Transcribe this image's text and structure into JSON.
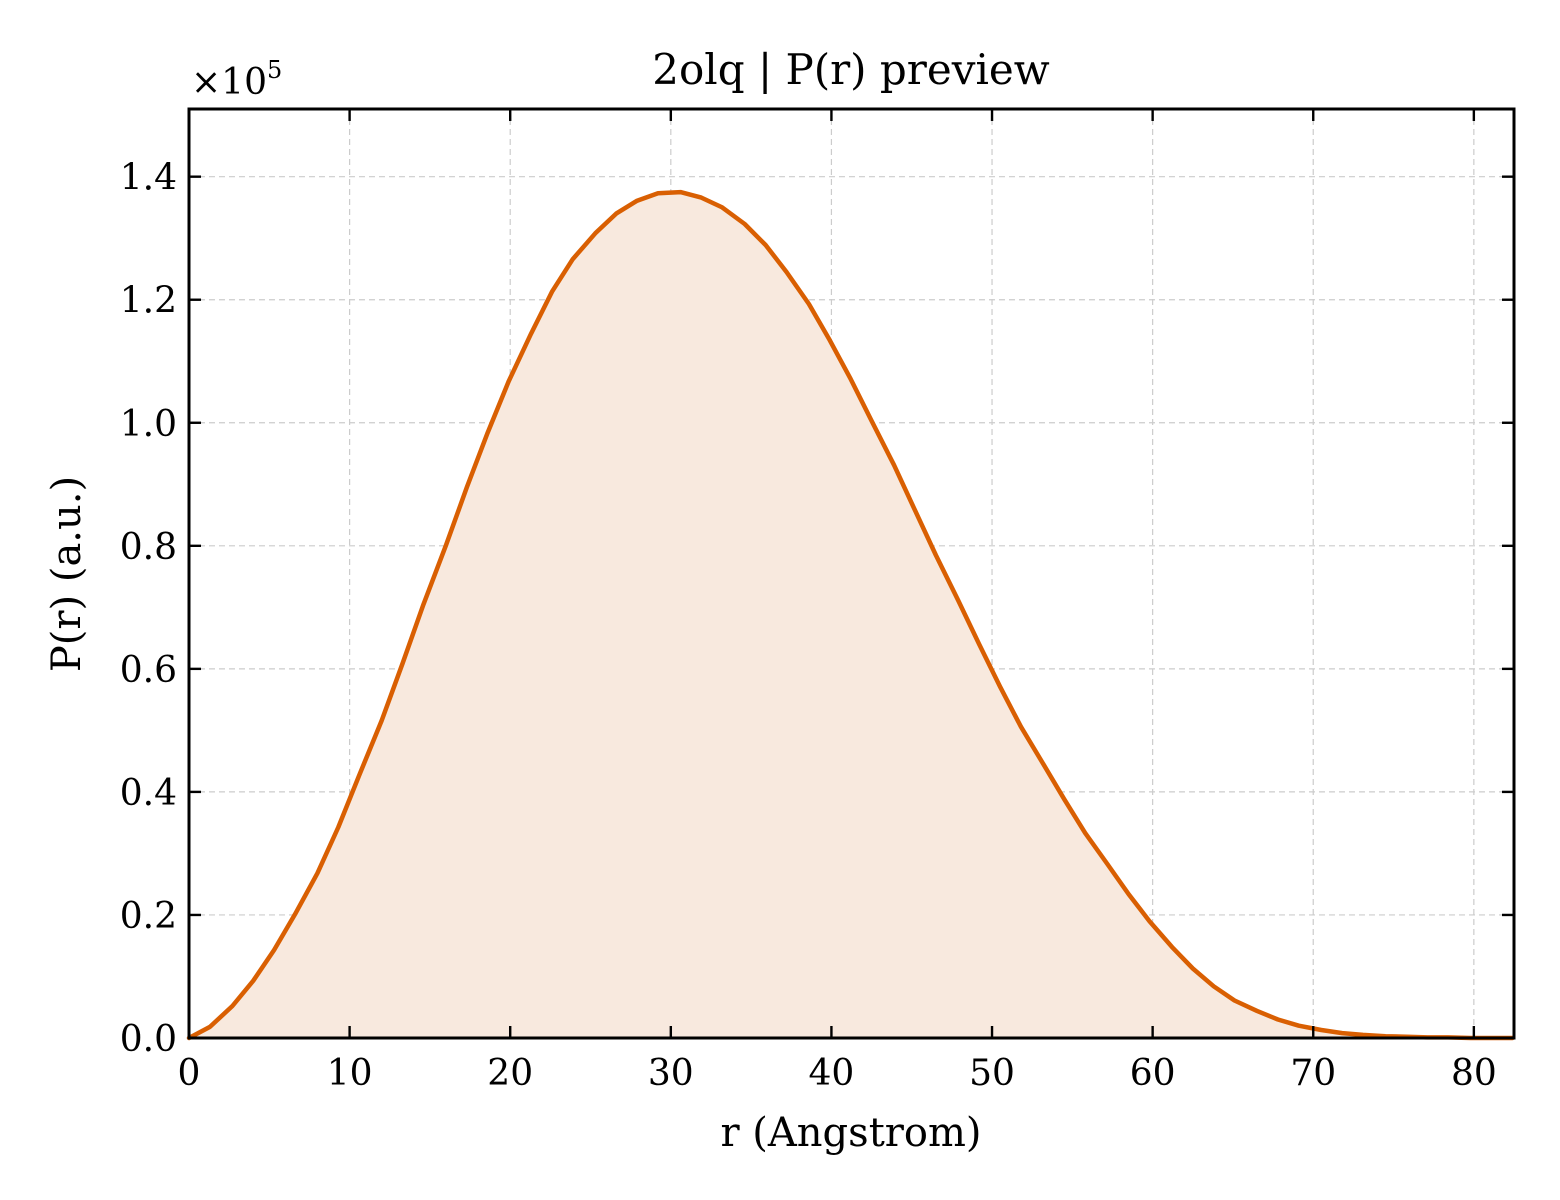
{
  "chart_data": {
    "type": "area",
    "title": "2olq | P(r) preview",
    "xlabel": "r (Angstrom)",
    "ylabel": "P(r) (a.u.)",
    "y_multiplier": "×10",
    "y_multiplier_exponent": "5",
    "xlim": [
      0,
      82.5
    ],
    "ylim": [
      0,
      1.51
    ],
    "xticks": [
      0,
      10,
      20,
      30,
      40,
      50,
      60,
      70,
      80
    ],
    "xtick_labels": [
      "0",
      "10",
      "20",
      "30",
      "40",
      "50",
      "60",
      "70",
      "80"
    ],
    "yticks": [
      0.0,
      0.2,
      0.4,
      0.6,
      0.8,
      1.0,
      1.2,
      1.4
    ],
    "ytick_labels": [
      "0.0",
      "0.2",
      "0.4",
      "0.6",
      "0.8",
      "1.0",
      "1.2",
      "1.4"
    ],
    "grid": true,
    "colors": {
      "line": "#d95f02",
      "fill": "#f8e9de"
    },
    "series": [
      {
        "x": [
          0,
          1.3,
          2.7,
          4.0,
          5.3,
          6.6,
          8.0,
          9.3,
          10.6,
          12.0,
          13.3,
          14.6,
          16.0,
          17.3,
          18.6,
          19.9,
          21.3,
          22.6,
          23.9,
          25.3,
          26.6,
          27.9,
          29.2,
          30.6,
          31.9,
          33.2,
          34.6,
          35.9,
          37.2,
          38.6,
          39.9,
          41.2,
          42.5,
          43.9,
          45.2,
          46.5,
          47.9,
          49.2,
          50.5,
          51.8,
          53.2,
          54.5,
          55.8,
          57.2,
          58.5,
          59.8,
          61.2,
          62.5,
          63.8,
          65.1,
          66.5,
          67.8,
          69.1,
          70.5,
          71.8,
          73.1,
          74.5,
          75.8,
          77.1,
          78.4,
          79.8,
          81.1,
          82.4
        ],
        "values": [
          0.0,
          0.018,
          0.052,
          0.093,
          0.143,
          0.201,
          0.268,
          0.343,
          0.427,
          0.516,
          0.609,
          0.705,
          0.801,
          0.895,
          0.984,
          1.067,
          1.145,
          1.213,
          1.266,
          1.308,
          1.34,
          1.361,
          1.373,
          1.375,
          1.366,
          1.35,
          1.323,
          1.289,
          1.245,
          1.193,
          1.134,
          1.071,
          1.003,
          0.931,
          0.858,
          0.785,
          0.711,
          0.64,
          0.571,
          0.506,
          0.445,
          0.388,
          0.333,
          0.282,
          0.234,
          0.19,
          0.148,
          0.113,
          0.084,
          0.061,
          0.044,
          0.03,
          0.02,
          0.013,
          0.008,
          0.005,
          0.003,
          0.002,
          0.001,
          0.001,
          0.0,
          0.0,
          0.0
        ]
      }
    ]
  }
}
